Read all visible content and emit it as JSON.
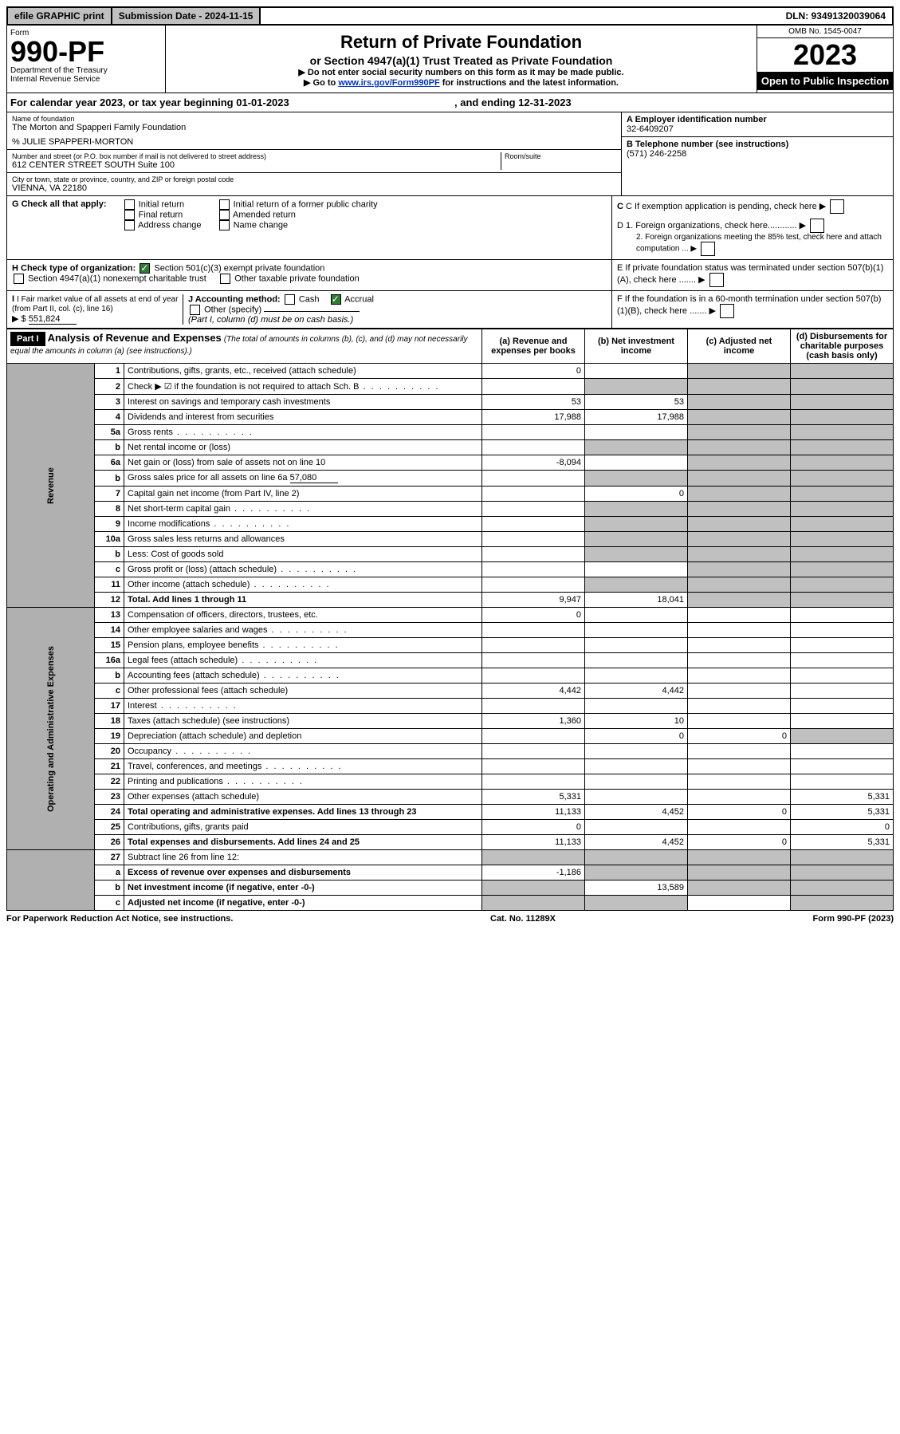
{
  "topbar": {
    "efile": "efile GRAPHIC print",
    "submission": "Submission Date - 2024-11-15",
    "dln": "DLN: 93491320039064"
  },
  "header": {
    "form_label": "Form",
    "form_no": "990-PF",
    "dept1": "Department of the Treasury",
    "dept2": "Internal Revenue Service",
    "title": "Return of Private Foundation",
    "subtitle": "or Section 4947(a)(1) Trust Treated as Private Foundation",
    "note1": "▶ Do not enter social security numbers on this form as it may be made public.",
    "note2_pre": "▶ Go to ",
    "note2_link": "www.irs.gov/Form990PF",
    "note2_post": " for instructions and the latest information.",
    "omb": "OMB No. 1545-0047",
    "year": "2023",
    "inspect": "Open to Public Inspection"
  },
  "calendar": {
    "pre": "For calendar year 2023, or tax year beginning ",
    "begin": "01-01-2023",
    "mid": ", and ending ",
    "end": "12-31-2023"
  },
  "info": {
    "name_label": "Name of foundation",
    "name": "The Morton and Spapperi Family Foundation",
    "care_of": "% JULIE SPAPPERI-MORTON",
    "addr_label": "Number and street (or P.O. box number if mail is not delivered to street address)",
    "addr": "612 CENTER STREET SOUTH Suite 100",
    "room_label": "Room/suite",
    "city_label": "City or town, state or province, country, and ZIP or foreign postal code",
    "city": "VIENNA, VA  22180",
    "ein_label": "A Employer identification number",
    "ein": "32-6409207",
    "phone_label": "B Telephone number (see instructions)",
    "phone": "(571) 246-2258",
    "c_label": "C If exemption application is pending, check here",
    "d1": "D 1. Foreign organizations, check here............",
    "d2": "2. Foreign organizations meeting the 85% test, check here and attach computation ...",
    "e_label": "E  If private foundation status was terminated under section 507(b)(1)(A), check here .......",
    "f_label": "F  If the foundation is in a 60-month termination under section 507(b)(1)(B), check here ......."
  },
  "g": {
    "label": "G Check all that apply:",
    "o1": "Initial return",
    "o2": "Final return",
    "o3": "Address change",
    "o4": "Initial return of a former public charity",
    "o5": "Amended return",
    "o6": "Name change"
  },
  "h": {
    "label": "H Check type of organization:",
    "o1": "Section 501(c)(3) exempt private foundation",
    "o2": "Section 4947(a)(1) nonexempt charitable trust",
    "o3": "Other taxable private foundation"
  },
  "i": {
    "label": "I Fair market value of all assets at end of year (from Part II, col. (c), line 16)",
    "prefix": "▶ $",
    "value": "551,824"
  },
  "j": {
    "label": "J Accounting method:",
    "cash": "Cash",
    "accrual": "Accrual",
    "other": "Other (specify)",
    "note": "(Part I, column (d) must be on cash basis.)"
  },
  "part1": {
    "tag": "Part I",
    "title": "Analysis of Revenue and Expenses",
    "sub": " (The total of amounts in columns (b), (c), and (d) may not necessarily equal the amounts in column (a) (see instructions).)",
    "col_a": "(a)   Revenue and expenses per books",
    "col_b": "(b)   Net investment income",
    "col_c": "(c)   Adjusted net income",
    "col_d": "(d)  Disbursements for charitable purposes (cash basis only)"
  },
  "vlabels": {
    "rev": "Revenue",
    "exp": "Operating and Administrative Expenses"
  },
  "rows": [
    {
      "n": "1",
      "d": "Contributions, gifts, grants, etc., received (attach schedule)",
      "a": "0"
    },
    {
      "n": "2",
      "d": "Check ▶ ☑ if the foundation is not required to attach Sch. B",
      "dots": true
    },
    {
      "n": "3",
      "d": "Interest on savings and temporary cash investments",
      "a": "53",
      "b": "53"
    },
    {
      "n": "4",
      "d": "Dividends and interest from securities",
      "a": "17,988",
      "b": "17,988"
    },
    {
      "n": "5a",
      "d": "Gross rents",
      "dots": true
    },
    {
      "n": "b",
      "d": "Net rental income or (loss)"
    },
    {
      "n": "6a",
      "d": "Net gain or (loss) from sale of assets not on line 10",
      "a": "-8,094"
    },
    {
      "n": "b",
      "d": "Gross sales price for all assets on line 6a",
      "extra": "57,080"
    },
    {
      "n": "7",
      "d": "Capital gain net income (from Part IV, line 2)",
      "b": "0"
    },
    {
      "n": "8",
      "d": "Net short-term capital gain",
      "dots": true
    },
    {
      "n": "9",
      "d": "Income modifications",
      "dots": true
    },
    {
      "n": "10a",
      "d": "Gross sales less returns and allowances"
    },
    {
      "n": "b",
      "d": "Less: Cost of goods sold"
    },
    {
      "n": "c",
      "d": "Gross profit or (loss) (attach schedule)",
      "dots": true
    },
    {
      "n": "11",
      "d": "Other income (attach schedule)",
      "dots": true
    },
    {
      "n": "12",
      "d": "Total. Add lines 1 through 11",
      "bold": true,
      "a": "9,947",
      "b": "18,041"
    }
  ],
  "erows": [
    {
      "n": "13",
      "d": "Compensation of officers, directors, trustees, etc.",
      "a": "0"
    },
    {
      "n": "14",
      "d": "Other employee salaries and wages",
      "dots": true
    },
    {
      "n": "15",
      "d": "Pension plans, employee benefits",
      "dots": true
    },
    {
      "n": "16a",
      "d": "Legal fees (attach schedule)",
      "dots": true
    },
    {
      "n": "b",
      "d": "Accounting fees (attach schedule)",
      "dots": true
    },
    {
      "n": "c",
      "d": "Other professional fees (attach schedule)",
      "a": "4,442",
      "b": "4,442"
    },
    {
      "n": "17",
      "d": "Interest",
      "dots": true
    },
    {
      "n": "18",
      "d": "Taxes (attach schedule) (see instructions)",
      "a": "1,360",
      "b": "10"
    },
    {
      "n": "19",
      "d": "Depreciation (attach schedule) and depletion",
      "b": "0",
      "c": "0"
    },
    {
      "n": "20",
      "d": "Occupancy",
      "dots": true
    },
    {
      "n": "21",
      "d": "Travel, conferences, and meetings",
      "dots": true
    },
    {
      "n": "22",
      "d": "Printing and publications",
      "dots": true
    },
    {
      "n": "23",
      "d": "Other expenses (attach schedule)",
      "a": "5,331",
      "dv": "5,331"
    },
    {
      "n": "24",
      "d": "Total operating and administrative expenses. Add lines 13 through 23",
      "bold": true,
      "a": "11,133",
      "b": "4,452",
      "c": "0",
      "dv": "5,331"
    },
    {
      "n": "25",
      "d": "Contributions, gifts, grants paid",
      "a": "0",
      "dv": "0"
    },
    {
      "n": "26",
      "d": "Total expenses and disbursements. Add lines 24 and 25",
      "bold": true,
      "a": "11,133",
      "b": "4,452",
      "c": "0",
      "dv": "5,331"
    }
  ],
  "frows": [
    {
      "n": "27",
      "d": "Subtract line 26 from line 12:"
    },
    {
      "n": "a",
      "d": "Excess of revenue over expenses and disbursements",
      "bold": true,
      "a": "-1,186"
    },
    {
      "n": "b",
      "d": "Net investment income (if negative, enter -0-)",
      "bold": true,
      "b": "13,589"
    },
    {
      "n": "c",
      "d": "Adjusted net income (if negative, enter -0-)",
      "bold": true
    }
  ],
  "footer": {
    "left": "For Paperwork Reduction Act Notice, see instructions.",
    "mid": "Cat. No. 11289X",
    "right": "Form 990-PF (2023)"
  },
  "colors": {
    "shade": "#c0c0c0",
    "black": "#000000",
    "link": "#0033cc",
    "check": "#2e7d32"
  }
}
